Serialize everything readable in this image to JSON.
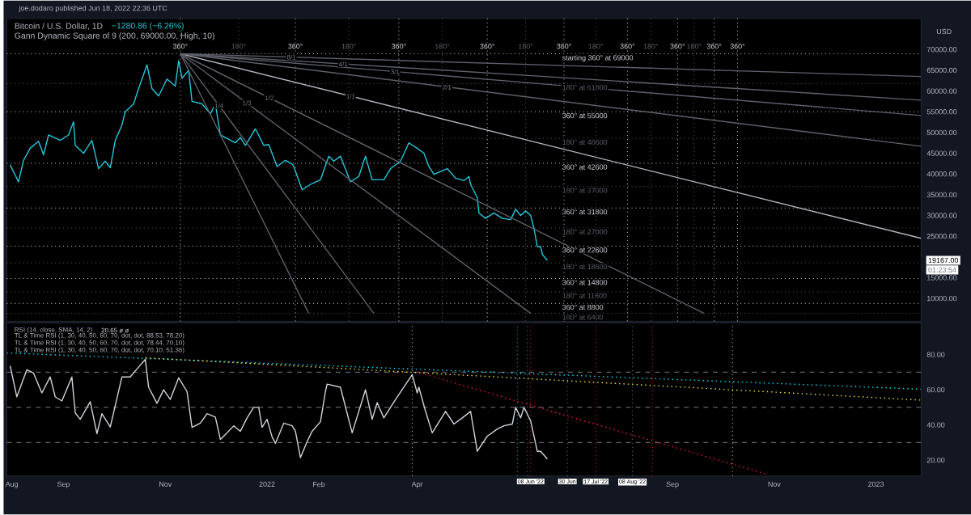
{
  "chart_data": [
    {
      "type": "line",
      "title": "Bitcoin / U.S. Dollar, 1D",
      "subtitle": "−1280.86 (−6.26%)",
      "ylabel": "USD",
      "xlim": [
        "2021-07-29",
        "2023-01-28"
      ],
      "ylim": [
        4500,
        77500
      ],
      "yticks": [
        {
          "value": 10000,
          "label": "10000.00"
        },
        {
          "value": 15000,
          "label": "15000.00"
        },
        {
          "value": 25000,
          "label": "25000.00"
        },
        {
          "value": 30000,
          "label": "30000.00"
        },
        {
          "value": 35000,
          "label": "35000.00"
        },
        {
          "value": 40000,
          "label": "40000.00"
        },
        {
          "value": 45000,
          "label": "45000.00"
        },
        {
          "value": 50000,
          "label": "50000.00"
        },
        {
          "value": 55000,
          "label": "55000.00"
        },
        {
          "value": 60000,
          "label": "60000.00"
        },
        {
          "value": 65000,
          "label": "65000.00"
        },
        {
          "value": 70000,
          "label": "70000.00"
        }
      ],
      "tick_labels": "y",
      "line_style": "solid",
      "series": [
        {
          "color": "#26c6da",
          "x": [
            "2021-07-31",
            "2021-08-05",
            "2021-08-08",
            "2021-08-12",
            "2021-08-17",
            "2021-08-20",
            "2021-08-23",
            "2021-08-30",
            "2021-09-04",
            "2021-09-07",
            "2021-09-08",
            "2021-09-13",
            "2021-09-18",
            "2021-09-22",
            "2021-09-26",
            "2021-09-29",
            "2021-10-02",
            "2021-10-06",
            "2021-10-08",
            "2021-10-13",
            "2021-10-16",
            "2021-10-21",
            "2021-10-24",
            "2021-10-28",
            "2021-11-02",
            "2021-11-07",
            "2021-11-09",
            "2021-11-11",
            "2021-11-15",
            "2021-11-17",
            "2021-11-23",
            "2021-11-28",
            "2021-12-01",
            "2021-12-04",
            "2021-12-13",
            "2021-12-16",
            "2021-12-19",
            "2021-12-25",
            "2021-12-30",
            "2022-01-02",
            "2022-01-07",
            "2022-01-12",
            "2022-01-16",
            "2022-01-17",
            "2022-01-22",
            "2022-01-27",
            "2022-02-02",
            "2022-02-07",
            "2022-02-10",
            "2022-02-14",
            "2022-02-20",
            "2022-02-25",
            "2022-03-01",
            "2022-03-05",
            "2022-03-12",
            "2022-03-16",
            "2022-03-22",
            "2022-03-27",
            "2022-04-01",
            "2022-04-05",
            "2022-04-08",
            "2022-04-11",
            "2022-04-19",
            "2022-04-24",
            "2022-04-29",
            "2022-05-02",
            "2022-05-03",
            "2022-05-07",
            "2022-05-08",
            "2022-05-12",
            "2022-05-17",
            "2022-05-22",
            "2022-05-27",
            "2022-05-30",
            "2022-06-02",
            "2022-06-05",
            "2022-06-08",
            "2022-06-10",
            "2022-06-12",
            "2022-06-14",
            "2022-06-15",
            "2022-06-18"
          ],
          "values": [
            42200,
            38100,
            43300,
            46200,
            47900,
            44600,
            49400,
            48100,
            49400,
            52600,
            46900,
            45000,
            48100,
            41300,
            43100,
            41500,
            48100,
            51800,
            55000,
            56900,
            60600,
            66300,
            60600,
            58800,
            62900,
            61200,
            67300,
            63100,
            65000,
            57500,
            56900,
            54500,
            56900,
            49400,
            47500,
            48800,
            46900,
            50900,
            46900,
            47100,
            41800,
            43300,
            42400,
            41800,
            36200,
            37500,
            38600,
            44300,
            43100,
            44300,
            38100,
            39400,
            44300,
            38600,
            38600,
            41300,
            43100,
            47500,
            46200,
            45000,
            41800,
            39900,
            41300,
            39000,
            38400,
            39400,
            37500,
            34300,
            30600,
            29300,
            30600,
            29300,
            29000,
            31500,
            30000,
            31100,
            30000,
            26800,
            22500,
            22500,
            20600,
            19200
          ]
        },
        {
          "name": "1/1",
          "color": "#b2b5be",
          "x": [
            "2021-11-10",
            "2023-01-28"
          ],
          "values": [
            69000,
            24500
          ]
        },
        {
          "name": "2/1",
          "color": "#5d606b",
          "x": [
            "2021-11-10",
            "2023-01-28"
          ],
          "values": [
            69000,
            46700
          ]
        },
        {
          "name": "3/1",
          "color": "#5d606b",
          "x": [
            "2021-11-10",
            "2023-01-28"
          ],
          "values": [
            69000,
            54100
          ]
        },
        {
          "name": "4/1",
          "color": "#5d606b",
          "x": [
            "2021-11-10",
            "2023-01-28"
          ],
          "values": [
            69000,
            57800
          ]
        },
        {
          "name": "8/1",
          "color": "#5d606b",
          "x": [
            "2021-11-10",
            "2023-01-28"
          ],
          "values": [
            69000,
            63500
          ]
        },
        {
          "name": "1/2",
          "color": "#5d606b",
          "x": [
            "2021-11-10",
            "2022-09-20"
          ],
          "values": [
            69000,
            6400
          ]
        },
        {
          "name": "1/3",
          "color": "#5d606b",
          "x": [
            "2021-11-10",
            "2022-06-08"
          ],
          "values": [
            69000,
            6400
          ]
        },
        {
          "name": "1/4",
          "color": "#5d606b",
          "x": [
            "2021-11-10",
            "2022-03-06"
          ],
          "values": [
            69000,
            6400
          ]
        },
        {
          "color": "#5d606b",
          "x": [
            "2021-11-10",
            "2022-01-26"
          ],
          "values": [
            69000,
            6400
          ]
        }
      ],
      "ref_lines": [
        {
          "axis": "y",
          "value": 69000,
          "label": "starting 360° at 69000",
          "color": "#d1d4dc",
          "line_style": "dotted"
        },
        {
          "axis": "y",
          "value": 61800,
          "label": "180° at 61800",
          "color": "#5d606b",
          "line_style": "dotted"
        },
        {
          "axis": "y",
          "value": 55000,
          "label": "360° at 55000",
          "color": "#d1d4dc",
          "line_style": "dotted"
        },
        {
          "axis": "y",
          "value": 48600,
          "label": "180° at 48600",
          "color": "#5d606b",
          "line_style": "dotted"
        },
        {
          "axis": "y",
          "value": 42600,
          "label": "360° at 42600",
          "color": "#d1d4dc",
          "line_style": "dotted"
        },
        {
          "axis": "y",
          "value": 37000,
          "label": "180° at 37000",
          "color": "#5d606b",
          "line_style": "dotted"
        },
        {
          "axis": "y",
          "value": 31800,
          "label": "360° at 31800",
          "color": "#d1d4dc",
          "line_style": "dotted"
        },
        {
          "axis": "y",
          "value": 27000,
          "label": "180° at 27000",
          "color": "#5d606b",
          "line_style": "dotted"
        },
        {
          "axis": "y",
          "value": 22600,
          "label": "360° at 22600",
          "color": "#d1d4dc",
          "line_style": "dotted"
        },
        {
          "axis": "y",
          "value": 18600,
          "label": "180° at 18600",
          "color": "#5d606b",
          "line_style": "dotted"
        },
        {
          "axis": "y",
          "value": 14800,
          "label": "360° at 14800",
          "color": "#d1d4dc",
          "line_style": "dotted"
        },
        {
          "axis": "y",
          "value": 11600,
          "label": "180° at 11600",
          "color": "#5d606b",
          "line_style": "dotted"
        },
        {
          "axis": "y",
          "value": 8800,
          "label": "360° at 8800",
          "color": "#d1d4dc",
          "line_style": "dotted"
        },
        {
          "axis": "y",
          "value": 6400,
          "label": "180° at 6400",
          "color": "#5d606b",
          "line_style": "dotted"
        },
        {
          "axis": "x",
          "value": "2021-11-10",
          "label": "360°",
          "color": "#d1d4dc",
          "line_style": "dotted"
        },
        {
          "axis": "x",
          "value": "2021-12-15",
          "label": "180°",
          "color": "#5d606b",
          "line_style": "dotted"
        },
        {
          "axis": "x",
          "value": "2022-01-18",
          "label": "360°",
          "color": "#d1d4dc",
          "line_style": "dotted"
        },
        {
          "axis": "x",
          "value": "2022-02-19",
          "label": "180°",
          "color": "#5d606b",
          "line_style": "dotted"
        },
        {
          "axis": "x",
          "value": "2022-03-21",
          "label": "360°",
          "color": "#d1d4dc",
          "line_style": "dotted"
        },
        {
          "axis": "x",
          "value": "2022-04-16",
          "label": "180°",
          "color": "#5d606b",
          "line_style": "dotted"
        },
        {
          "axis": "x",
          "value": "2022-05-13",
          "label": "360°",
          "color": "#d1d4dc",
          "line_style": "dotted"
        },
        {
          "axis": "x",
          "value": "2022-06-05",
          "label": "180°",
          "color": "#5d606b",
          "line_style": "dotted"
        },
        {
          "axis": "x",
          "value": "2022-06-28",
          "label": "360°",
          "color": "#d1d4dc",
          "line_style": "dotted"
        },
        {
          "axis": "x",
          "value": "2022-07-17",
          "label": "180°",
          "color": "#5d606b",
          "line_style": "dotted"
        },
        {
          "axis": "x",
          "value": "2022-08-05",
          "label": "360°",
          "color": "#d1d4dc",
          "line_style": "dotted"
        },
        {
          "axis": "x",
          "value": "2022-08-19",
          "label": "180°",
          "color": "#5d606b",
          "line_style": "dotted"
        },
        {
          "axis": "x",
          "value": "2022-09-04",
          "label": "360°",
          "color": "#d1d4dc",
          "line_style": "dotted"
        },
        {
          "axis": "x",
          "value": "2022-09-14",
          "label": "180°",
          "color": "#5d606b",
          "line_style": "dotted"
        },
        {
          "axis": "x",
          "value": "2022-09-26",
          "label": "360°",
          "color": "#d1d4dc",
          "line_style": "dotted"
        },
        {
          "axis": "x",
          "value": "2022-10-10",
          "label": "360°",
          "color": "#d1d4dc",
          "line_style": "dotted"
        }
      ],
      "annotations": [
        "joe.dodaro published Jun 18, 2022 22:36 UTC",
        "Gann Dynamic Square of 9 (200, 69000.00, High, 10)",
        "19167.00",
        "01:23:54"
      ]
    },
    {
      "type": "line",
      "title": "RSI (14, close, SMA, 14, 2)",
      "subtitle": "20.65  ø  ø",
      "xlim": [
        "2021-07-29",
        "2023-01-28"
      ],
      "ylim": [
        11,
        98
      ],
      "xticks": [
        {
          "value": "2021-08-01",
          "label": "Aug"
        },
        {
          "value": "2021-09-01",
          "label": "Sep"
        },
        {
          "value": "2021-11-01",
          "label": "Nov"
        },
        {
          "value": "2022-01-01",
          "label": "2022"
        },
        {
          "value": "2022-02-01",
          "label": "Feb"
        },
        {
          "value": "2022-04-01",
          "label": "Apr"
        },
        {
          "value": "2022-09-01",
          "label": "Sep"
        },
        {
          "value": "2022-11-01",
          "label": "Nov"
        },
        {
          "value": "2023-01-01",
          "label": "2023"
        }
      ],
      "yticks": [
        {
          "value": 20,
          "label": "20.00"
        },
        {
          "value": 40,
          "label": "40.00"
        },
        {
          "value": 60,
          "label": "60.00"
        },
        {
          "value": 80,
          "label": "80.00"
        }
      ],
      "line_style": "solid",
      "series": [
        {
          "color": "#d1d4dc",
          "x": [
            "2021-07-31",
            "2021-08-04",
            "2021-08-10",
            "2021-08-14",
            "2021-08-19",
            "2021-08-24",
            "2021-08-27",
            "2021-08-31",
            "2021-09-06",
            "2021-09-08",
            "2021-09-11",
            "2021-09-17",
            "2021-09-21",
            "2021-09-24",
            "2021-09-29",
            "2021-10-06",
            "2021-10-11",
            "2021-10-15",
            "2021-10-20",
            "2021-10-22",
            "2021-10-27",
            "2021-10-31",
            "2021-11-04",
            "2021-11-09",
            "2021-11-14",
            "2021-11-17",
            "2021-11-22",
            "2021-11-26",
            "2021-12-01",
            "2021-12-04",
            "2021-12-08",
            "2021-12-12",
            "2021-12-16",
            "2021-12-20",
            "2021-12-24",
            "2021-12-27",
            "2021-12-29",
            "2022-01-01",
            "2022-01-04",
            "2022-01-06",
            "2022-01-11",
            "2022-01-16",
            "2022-01-18",
            "2022-01-21",
            "2022-01-25",
            "2022-01-28",
            "2022-02-02",
            "2022-02-05",
            "2022-02-06",
            "2022-02-14",
            "2022-02-21",
            "2022-03-01",
            "2022-03-05",
            "2022-03-08",
            "2022-03-12",
            "2022-03-19",
            "2022-03-29",
            "2022-04-01",
            "2022-04-02",
            "2022-04-06",
            "2022-04-10",
            "2022-04-18",
            "2022-04-23",
            "2022-04-28",
            "2022-05-03",
            "2022-05-07",
            "2022-05-13",
            "2022-05-19",
            "2022-05-23",
            "2022-05-28",
            "2022-05-30",
            "2022-06-02",
            "2022-06-04",
            "2022-06-08",
            "2022-06-12",
            "2022-06-14",
            "2022-06-18"
          ],
          "values": [
            73.6,
            56,
            71.4,
            69.5,
            58.2,
            67.3,
            56,
            53.6,
            67.3,
            46.8,
            43.2,
            53.2,
            35,
            46.4,
            38.8,
            67.3,
            67.3,
            71.8,
            77.3,
            61.4,
            52.3,
            60,
            54.5,
            66.8,
            59,
            38.6,
            41,
            46.4,
            44.5,
            31.8,
            35.5,
            39.5,
            36.4,
            44,
            50,
            50,
            38.6,
            43.2,
            33.2,
            29.5,
            41,
            39.5,
            36.4,
            21.4,
            30.5,
            36.4,
            41.8,
            59,
            63.2,
            61.4,
            35.5,
            60,
            43.2,
            52.7,
            44,
            54.5,
            68.6,
            58.2,
            61.4,
            47.7,
            35.5,
            47.7,
            40.5,
            44,
            47.7,
            25,
            33.6,
            37.7,
            39.5,
            40.5,
            50,
            44,
            50,
            42.3,
            25,
            25,
            20.6
          ]
        },
        {
          "color": "#00e5ff",
          "line_style": "dotted",
          "x": [
            "2021-07-29",
            "2023-01-28"
          ],
          "values": [
            80.9,
            60.3
          ]
        },
        {
          "color": "#ffeb3b",
          "line_style": "dotted",
          "x": [
            "2021-10-20",
            "2023-01-28"
          ],
          "values": [
            78.2,
            54.1
          ]
        },
        {
          "color": "#ff1744",
          "line_style": "dotted",
          "x": [
            "2022-04-01",
            "2022-10-28"
          ],
          "values": [
            70.1,
            11.8
          ]
        }
      ],
      "ref_lines": [
        {
          "axis": "y",
          "value": 70,
          "color": "#787b86",
          "line_style": "dashed"
        },
        {
          "axis": "y",
          "value": 50,
          "color": "#787b86",
          "line_style": "dashed"
        },
        {
          "axis": "y",
          "value": 30,
          "color": "#787b86",
          "line_style": "dashed"
        },
        {
          "axis": "x",
          "value": "2022-03-29",
          "color": "#ffeb3b",
          "line_style": "dotted"
        },
        {
          "axis": "x",
          "value": "2022-05-31",
          "color": "#00bcd4",
          "line_style": "dotted"
        },
        {
          "axis": "x",
          "value": "2022-06-06",
          "color": "#787b86",
          "line_style": "dotted"
        },
        {
          "axis": "x",
          "value": "2022-06-08",
          "label": "08 Jun '22",
          "color": "#ff1744",
          "line_style": "dotted"
        },
        {
          "axis": "x",
          "value": "2022-06-30",
          "label": "30 Jun",
          "color": "#787b86",
          "line_style": "dotted"
        },
        {
          "axis": "x",
          "value": "2022-07-17",
          "label": "17 Jul '22",
          "color": "#ff1744",
          "line_style": "dotted"
        },
        {
          "axis": "x",
          "value": "2022-08-08",
          "label": "08 Aug '22",
          "color": "#787b86",
          "line_style": "dotted"
        },
        {
          "axis": "x",
          "value": "2022-08-20",
          "color": "#ff1744",
          "line_style": "dotted"
        },
        {
          "axis": "x",
          "value": "2022-10-07",
          "color": "#ffeb3b",
          "line_style": "dotted"
        }
      ],
      "annotations": [
        "TL & Time RSI (1, 30, 40, 50, 60, 70, dot, dot, 88.53, 78.20)",
        "TL & Time RSI (1, 30, 40, 50, 60, 70, dot, dot, 78.44, 70.10)",
        "TL & Time RSI (1, 30, 40, 50, 60, 70, dot, dot, 70.10, 51.36)"
      ]
    }
  ]
}
